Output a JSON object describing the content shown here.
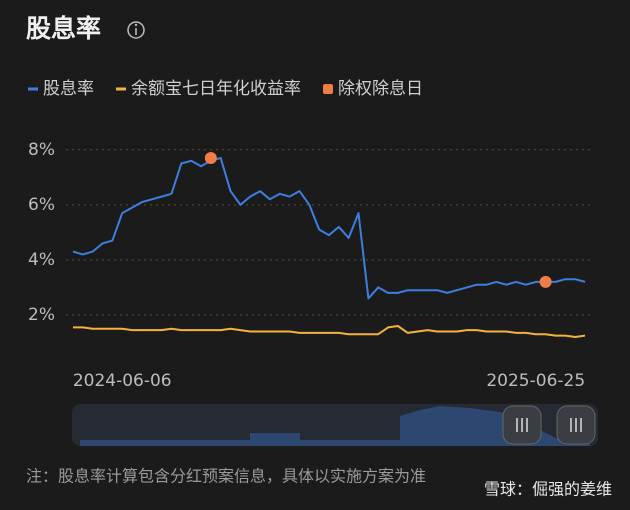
{
  "chart_data": {
    "type": "line",
    "title": "股息率",
    "categories": [
      null,
      null,
      null,
      null,
      null,
      "2024-06-06",
      null,
      null,
      null,
      null,
      null,
      null,
      null,
      null,
      null,
      null,
      null,
      null,
      null,
      null,
      null,
      null,
      null,
      null,
      null,
      null,
      null,
      null,
      null,
      null,
      null,
      null,
      null,
      null,
      null,
      null,
      null,
      null,
      null,
      null,
      null,
      null,
      null,
      null,
      null,
      null,
      null,
      "2025-06-25",
      null,
      null,
      null,
      null,
      null
    ],
    "series": [
      {
        "name": "股息率",
        "color": "#3d7fe0",
        "type": "line",
        "values": [
          4.3,
          4.2,
          4.3,
          4.6,
          4.7,
          5.7,
          5.9,
          6.1,
          6.2,
          6.3,
          6.4,
          7.5,
          7.6,
          7.4,
          7.6,
          7.7,
          6.5,
          6.0,
          6.3,
          6.5,
          6.2,
          6.4,
          6.3,
          6.5,
          6.0,
          5.1,
          4.9,
          5.2,
          4.8,
          5.7,
          2.6,
          3.0,
          2.8,
          2.8,
          2.9,
          2.9,
          2.9,
          2.9,
          2.8,
          2.9,
          3.0,
          3.1,
          3.1,
          3.2,
          3.1,
          3.2,
          3.1,
          3.2,
          3.2,
          3.2,
          3.3,
          3.3,
          3.2
        ]
      },
      {
        "name": "余额宝七日年化收益率",
        "color": "#f2b33d",
        "type": "line",
        "values": [
          1.55,
          1.55,
          1.5,
          1.5,
          1.5,
          1.5,
          1.45,
          1.45,
          1.45,
          1.45,
          1.5,
          1.45,
          1.45,
          1.45,
          1.45,
          1.45,
          1.5,
          1.45,
          1.4,
          1.4,
          1.4,
          1.4,
          1.4,
          1.35,
          1.35,
          1.35,
          1.35,
          1.35,
          1.3,
          1.3,
          1.3,
          1.3,
          1.55,
          1.6,
          1.35,
          1.4,
          1.45,
          1.4,
          1.4,
          1.4,
          1.45,
          1.45,
          1.4,
          1.4,
          1.4,
          1.35,
          1.35,
          1.3,
          1.3,
          1.25,
          1.25,
          1.2,
          1.25
        ]
      },
      {
        "name": "除权除息日",
        "color": "#f07d46",
        "type": "scatter",
        "values": [
          null,
          null,
          null,
          null,
          null,
          null,
          null,
          null,
          null,
          null,
          null,
          null,
          null,
          null,
          7.7,
          null,
          null,
          null,
          null,
          null,
          null,
          null,
          null,
          null,
          null,
          null,
          null,
          null,
          null,
          null,
          null,
          null,
          null,
          null,
          null,
          null,
          null,
          null,
          null,
          null,
          null,
          null,
          null,
          null,
          null,
          null,
          null,
          null,
          3.2,
          null,
          null,
          null,
          null
        ]
      }
    ],
    "ylim": [
      1,
      8.5
    ],
    "yticks": [
      {
        "value": 2,
        "label": "2%"
      },
      {
        "value": 4,
        "label": "4%"
      },
      {
        "value": 6,
        "label": "6%"
      },
      {
        "value": 8,
        "label": "8%"
      }
    ],
    "grid": true,
    "note": "注：股息率计算包含分红预案信息，具体以实施方案为准",
    "watermark": "雪球：倔强的姜维"
  }
}
